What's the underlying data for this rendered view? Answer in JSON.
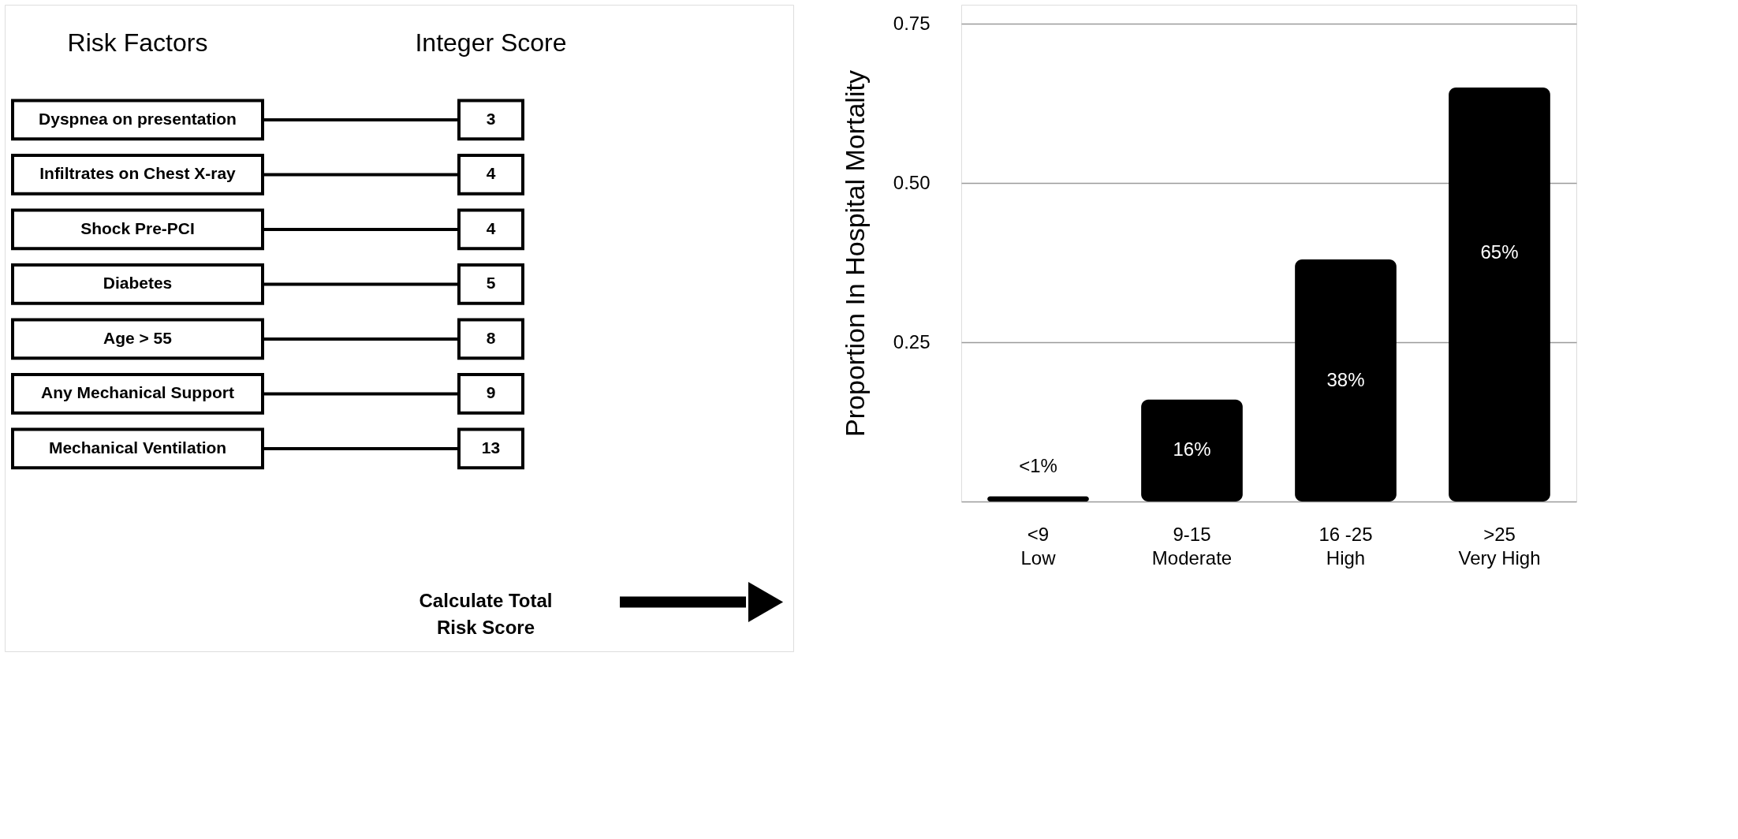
{
  "chart_data": [
    {
      "type": "other",
      "categories": [
        "Dyspnea on presentation",
        "Infiltrates on Chest X-ray",
        "Shock Pre-PCI",
        "Diabetes",
        "Age > 55",
        "Any Mechanical Support",
        "Mechanical Ventilation"
      ],
      "values": [
        3,
        4,
        4,
        5,
        8,
        9,
        13
      ],
      "data_labels": true,
      "annotations": [
        "Risk Factors",
        "Integer Score",
        "Calculate Total\nRisk Score"
      ]
    },
    {
      "type": "bar",
      "ylabel": "Proportion In Hospital Mortality",
      "categories": [
        "<9\nLow",
        "9-15\nModerate",
        "16 -25\nHigh",
        ">25\nVery High"
      ],
      "values": [
        0.008,
        0.16,
        0.38,
        0.65
      ],
      "value_labels": [
        "<1%",
        "16%",
        "38%",
        "65%"
      ],
      "color": "#000000",
      "ylim": [
        0,
        0.78
      ],
      "yticks": [
        {
          "value": 0,
          "label": null
        },
        {
          "value": 0.25,
          "label": "0.25"
        },
        {
          "value": 0.5,
          "label": "0.50"
        },
        {
          "value": 0.75,
          "label": "0.75"
        }
      ],
      "grid": "y"
    }
  ]
}
